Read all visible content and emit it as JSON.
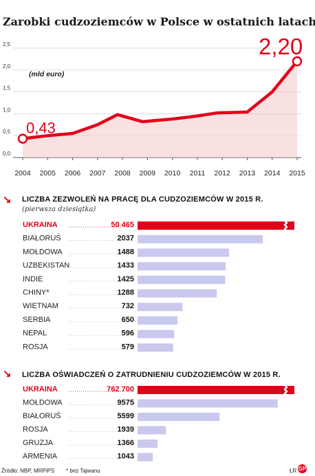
{
  "title": "Zarobki cudzoziemców w Polsce w ostatnich latach",
  "colors": {
    "accent": "#e2001a",
    "bar": "#c9c8ee",
    "fill": "#f6c8c8"
  },
  "chart_data": [
    {
      "type": "line",
      "title": "Zarobki cudzoziemców w Polsce w ostatnich latach",
      "unit_label": "(mld euro)",
      "x": [
        "2004",
        "2005",
        "2006",
        "2007",
        "2008",
        "2009",
        "2010",
        "2011",
        "2012",
        "2013",
        "2014",
        "2015"
      ],
      "x_pos": [
        2004,
        2005,
        2006,
        2007,
        2007.8,
        2008.8,
        2010,
        2011,
        2011.8,
        2013,
        2014,
        2015
      ],
      "y_ticks": [
        "0,0",
        "0,5",
        "1,0",
        "1,5",
        "2,0",
        "2,5"
      ],
      "ylim": [
        0,
        2.5
      ],
      "series": [
        {
          "values": [
            0.43,
            0.5,
            0.55,
            0.75,
            0.98,
            0.82,
            0.88,
            0.95,
            1.02,
            1.04,
            1.5,
            2.2
          ]
        }
      ],
      "start_label": "0,43",
      "end_label": "2,20",
      "grid": true
    },
    {
      "type": "bar",
      "title": "LICZBA ZEZWOLEŃ NA PRACĘ DLA CUDZOZIEMCÓW W 2015 R.",
      "subtitle": "(pierwsza dziesiątka)",
      "categories": [
        "UKRAINA",
        "BIAŁORUŚ",
        "MOŁDOWA",
        "UZBEKISTAN",
        "INDIE",
        "CHINY*",
        "WIETNAM",
        "SERBIA",
        "NEPAL",
        "ROSJA"
      ],
      "values": [
        50465,
        2037,
        1488,
        1433,
        1425,
        1288,
        732,
        650,
        596,
        579
      ],
      "value_labels": [
        "50 465",
        "2037",
        "1488",
        "1433",
        "1425",
        "1288",
        "732",
        "650",
        "596",
        "579"
      ],
      "broken_bar": 0,
      "bar_scale_max": 2550
    },
    {
      "type": "bar",
      "title": "LICZBA OŚWIADCZEŃ O ZATRUDNIENIU CUDZOZIEMCÓW W 2015 R.",
      "subtitle": "",
      "categories": [
        "UKRAINA",
        "MOŁDOWA",
        "BIAŁORUŚ",
        "ROSJA",
        "GRUZJA",
        "ARMENIA"
      ],
      "values": [
        762700,
        9575,
        5599,
        1939,
        1366,
        1043
      ],
      "value_labels": [
        "762 700",
        "9575",
        "5599",
        "1939",
        "1366",
        "1043"
      ],
      "broken_bar": 0,
      "bar_scale_max": 10710
    }
  ],
  "footer": {
    "source": "Źródło: NBP, MRPiPS",
    "note": "* bez Tajwanu",
    "initials": "ŁR",
    "logo": "GP"
  }
}
